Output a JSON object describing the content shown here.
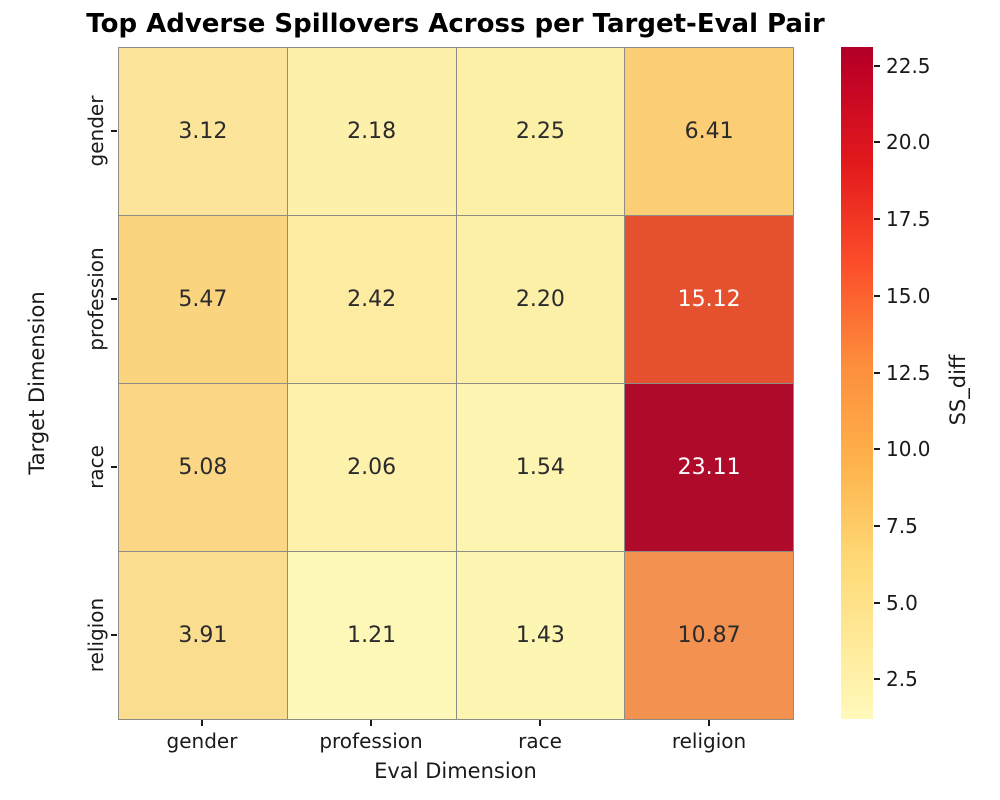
{
  "chart_data": {
    "type": "heatmap",
    "title": "Top Adverse Spillovers Across per Target-Eval Pair",
    "xlabel": "Eval Dimension",
    "ylabel": "Target Dimension",
    "x_categories": [
      "gender",
      "profession",
      "race",
      "religion"
    ],
    "y_categories": [
      "gender",
      "profession",
      "race",
      "religion"
    ],
    "values": [
      [
        3.12,
        2.18,
        2.25,
        6.41
      ],
      [
        5.47,
        2.42,
        2.2,
        15.12
      ],
      [
        5.08,
        2.06,
        1.54,
        23.11
      ],
      [
        3.91,
        1.21,
        1.43,
        10.87
      ]
    ],
    "rows": [
      {
        "y": "gender",
        "cells": [
          {
            "label": "3.12",
            "bg": "#fce59b",
            "fg": "#2b2b2b"
          },
          {
            "label": "2.18",
            "bg": "#fdf0aa",
            "fg": "#2b2b2b"
          },
          {
            "label": "2.25",
            "bg": "#fcefa6",
            "fg": "#2b2b2b"
          },
          {
            "label": "6.41",
            "bg": "#fbcd74",
            "fg": "#2b2b2b"
          }
        ]
      },
      {
        "y": "profession",
        "cells": [
          {
            "label": "5.47",
            "bg": "#fbd480",
            "fg": "#2b2b2b"
          },
          {
            "label": "2.42",
            "bg": "#fceba0",
            "fg": "#2b2b2b"
          },
          {
            "label": "2.20",
            "bg": "#fcefa8",
            "fg": "#2b2b2b"
          },
          {
            "label": "15.12",
            "bg": "#e5512f",
            "fg": "#ffffff"
          }
        ]
      },
      {
        "y": "race",
        "cells": [
          {
            "label": "5.08",
            "bg": "#fbd685",
            "fg": "#2b2b2b"
          },
          {
            "label": "2.06",
            "bg": "#fdf1ac",
            "fg": "#2b2b2b"
          },
          {
            "label": "1.54",
            "bg": "#fdf4b1",
            "fg": "#2b2b2b"
          },
          {
            "label": "23.11",
            "bg": "#b00a2b",
            "fg": "#ffffff"
          }
        ]
      },
      {
        "y": "religion",
        "cells": [
          {
            "label": "3.91",
            "bg": "#fbdd8f",
            "fg": "#2b2b2b"
          },
          {
            "label": "1.21",
            "bg": "#fdf8b7",
            "fg": "#2b2b2b"
          },
          {
            "label": "1.43",
            "bg": "#fdf6b3",
            "fg": "#2b2b2b"
          },
          {
            "label": "10.87",
            "bg": "#f29150",
            "fg": "#2b2b2b"
          }
        ]
      }
    ],
    "colorbar": {
      "label": "SS_diff",
      "colormap": "YlOrRd",
      "vmin": 1.21,
      "vmax": 23.11,
      "ticks": [
        "22.5",
        "20.0",
        "17.5",
        "15.0",
        "12.5",
        "10.0",
        "7.5",
        "5.0",
        "2.5"
      ],
      "gradient": [
        {
          "color": "#fff9bb",
          "pos": 0
        },
        {
          "color": "#ffeda0",
          "pos": 8.8
        },
        {
          "color": "#fed976",
          "pos": 23.5
        },
        {
          "color": "#feb24c",
          "pos": 38.2
        },
        {
          "color": "#fd8d3c",
          "pos": 52.9
        },
        {
          "color": "#fc4e2a",
          "pos": 67.6
        },
        {
          "color": "#e31a1c",
          "pos": 82.4
        },
        {
          "color": "#bd0026",
          "pos": 97.1
        },
        {
          "color": "#b10026",
          "pos": 100
        }
      ]
    },
    "layout": {
      "grid": "off",
      "legend": "none",
      "colorbar_position": "right",
      "gridline_color": "#8d8d85"
    }
  }
}
